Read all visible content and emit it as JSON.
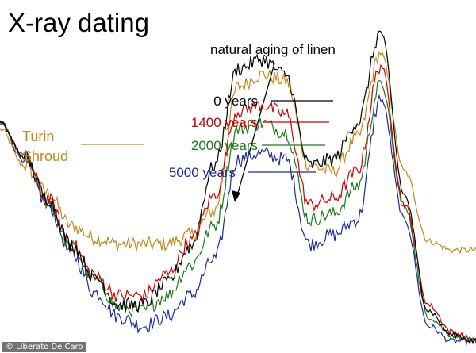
{
  "credit": "© Liberato De Caro",
  "chart_data": {
    "type": "line",
    "title": "X-ray dating",
    "annotation": "natural aging of linen",
    "grid": false,
    "legend": "inline labels, center",
    "x": [
      0,
      5,
      10,
      15,
      20,
      25,
      30,
      35,
      40,
      45,
      50,
      55,
      60,
      65,
      70,
      75,
      80,
      85,
      90,
      95,
      100
    ],
    "series": [
      {
        "name": "0 years",
        "color": "#000000",
        "values": [
          72,
          61,
          47,
          32,
          21,
          12,
          12,
          19,
          31,
          58,
          90,
          93,
          88,
          58,
          60,
          72,
          102,
          48,
          10,
          2,
          0
        ]
      },
      {
        "name": "1400 years",
        "color": "#cc0000",
        "values": [
          72,
          61,
          47,
          32,
          21,
          15,
          15,
          22,
          33,
          48,
          76,
          78,
          75,
          45,
          47,
          56,
          91,
          45,
          12,
          3,
          0
        ]
      },
      {
        "name": "2000 years",
        "color": "#1a7a1a",
        "values": [
          72,
          61,
          46,
          31,
          20,
          11,
          10,
          15,
          25,
          38,
          70,
          72,
          69,
          40,
          42,
          51,
          85,
          44,
          8,
          2,
          0
        ]
      },
      {
        "name": "5000 years",
        "color": "#1e2a9e",
        "values": [
          72,
          60,
          45,
          29,
          16,
          8,
          5,
          8,
          15,
          27,
          60,
          62,
          60,
          32,
          35,
          40,
          80,
          40,
          5,
          0,
          0
        ]
      },
      {
        "name": "Turin Shroud",
        "color": "#c08a1a",
        "values": [
          70,
          58,
          49,
          38,
          34,
          32,
          32,
          32,
          35,
          43,
          84,
          88,
          86,
          58,
          56,
          67,
          95,
          56,
          33,
          30,
          30
        ]
      }
    ],
    "label_lines": {
      "0 years": "0 years",
      "1400 years": "1400 years",
      "2000 years": "2000 years",
      "5000 years": "5000 years"
    },
    "turin_label": [
      "Turin",
      "Shroud"
    ],
    "ylim": [
      0,
      110
    ],
    "xlim": [
      0,
      100
    ]
  }
}
